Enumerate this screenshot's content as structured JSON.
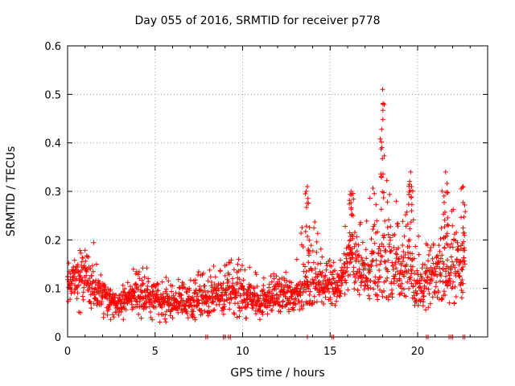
{
  "chart_data": {
    "type": "scatter",
    "title": "Day 055 of 2016, SRMTID for receiver p778",
    "xlabel": "GPS time / hours",
    "ylabel": "SRMTID / TECUs",
    "xlim": [
      0,
      24
    ],
    "ylim": [
      0,
      0.6
    ],
    "xticks": [
      0,
      5,
      10,
      15,
      20
    ],
    "yticks": [
      0,
      0.1,
      0.2,
      0.3,
      0.4,
      0.5,
      0.6
    ],
    "ytick_labels": [
      "0",
      "0.1",
      "0.2",
      "0.3",
      "0.4",
      "0.5",
      "0.6"
    ],
    "grid": true,
    "marker": "+",
    "color": "#ff0000",
    "series": [
      {
        "name": "SRMTID",
        "approx_envelope": {
          "x": [
            0.0,
            0.5,
            1.0,
            1.5,
            2.0,
            3.0,
            4.0,
            5.0,
            6.0,
            7.0,
            8.0,
            9.0,
            10.0,
            11.0,
            12.0,
            13.0,
            13.7,
            14.5,
            15.5,
            16.2,
            17.0,
            18.0,
            19.0,
            19.5,
            20.0,
            21.0,
            21.5,
            22.0,
            22.5
          ],
          "mean": [
            0.11,
            0.12,
            0.13,
            0.1,
            0.09,
            0.07,
            0.09,
            0.08,
            0.07,
            0.07,
            0.08,
            0.09,
            0.09,
            0.07,
            0.09,
            0.08,
            0.12,
            0.11,
            0.11,
            0.17,
            0.12,
            0.16,
            0.14,
            0.16,
            0.1,
            0.12,
            0.16,
            0.13,
            0.15
          ],
          "max": [
            0.17,
            0.18,
            0.2,
            0.2,
            0.11,
            0.1,
            0.16,
            0.13,
            0.12,
            0.13,
            0.14,
            0.16,
            0.17,
            0.13,
            0.14,
            0.14,
            0.31,
            0.19,
            0.17,
            0.3,
            0.22,
            0.51,
            0.23,
            0.34,
            0.21,
            0.22,
            0.34,
            0.26,
            0.31
          ],
          "min": [
            0.05,
            0.05,
            0.04,
            0.05,
            0.04,
            0.03,
            0.04,
            0.03,
            0.03,
            0.03,
            0.04,
            0.04,
            0.04,
            0.03,
            0.04,
            0.04,
            0.07,
            0.06,
            0.06,
            0.09,
            0.07,
            0.08,
            0.07,
            0.08,
            0.03,
            0.06,
            0.08,
            0.06,
            0.08
          ]
        },
        "peaks": [
          {
            "x": 13.7,
            "y": 0.31
          },
          {
            "x": 16.2,
            "y": 0.3
          },
          {
            "x": 18.0,
            "y": 0.51
          },
          {
            "x": 19.6,
            "y": 0.34
          },
          {
            "x": 21.6,
            "y": 0.34
          },
          {
            "x": 22.6,
            "y": 0.31
          }
        ],
        "zero_points_x": [
          7.9,
          8.0,
          8.9,
          9.0,
          9.2,
          9.3,
          13.7,
          15.1,
          15.2,
          20.5,
          20.6,
          21.8,
          21.9,
          22.0,
          22.6,
          22.7
        ]
      }
    ]
  }
}
